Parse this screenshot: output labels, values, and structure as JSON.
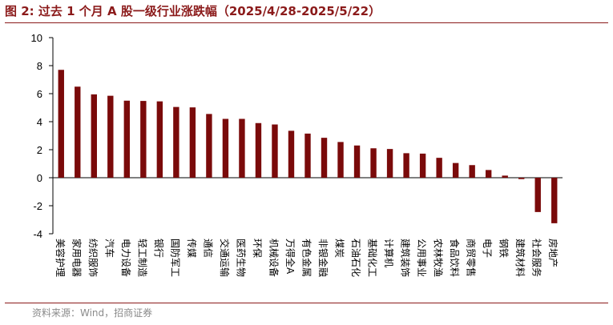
{
  "header": {
    "title": "图 2:  过去 1 个月 A 股一级行业涨跌幅（2025/4/28-2025/5/22）"
  },
  "footer": {
    "source": "资料来源：Wind，招商证券"
  },
  "chart_data": {
    "type": "bar",
    "title": "图 2:  过去 1 个月 A 股一级行业涨跌幅（2025/4/28-2025/5/22）",
    "xlabel": "",
    "ylabel": "",
    "ylim": [
      -4,
      10
    ],
    "yticks": [
      10,
      8,
      6,
      4,
      2,
      0,
      -2,
      -4
    ],
    "grid": false,
    "legend": "none",
    "bar_color": "#7a0a0a",
    "categories": [
      "美容护理",
      "家用电器",
      "纺织服饰",
      "汽车",
      "电力设备",
      "轻工制造",
      "银行",
      "国防军工",
      "传媒",
      "通信",
      "交通运输",
      "医药生物",
      "环保",
      "机械设备",
      "万得全A",
      "有色金属",
      "非银金融",
      "煤炭",
      "石油石化",
      "基础化工",
      "计算机",
      "建筑装饰",
      "公用事业",
      "农林牧渔",
      "食品饮料",
      "商贸零售",
      "电子",
      "钢铁",
      "建筑材料",
      "社会服务",
      "房地产"
    ],
    "values": [
      7.7,
      6.5,
      5.95,
      5.85,
      5.5,
      5.48,
      5.45,
      5.05,
      5.02,
      4.55,
      4.2,
      4.2,
      3.9,
      3.8,
      3.35,
      3.15,
      2.85,
      2.55,
      2.3,
      2.1,
      2.05,
      1.75,
      1.72,
      1.42,
      1.05,
      0.9,
      0.55,
      0.15,
      -0.1,
      -2.45,
      -3.25
    ]
  }
}
